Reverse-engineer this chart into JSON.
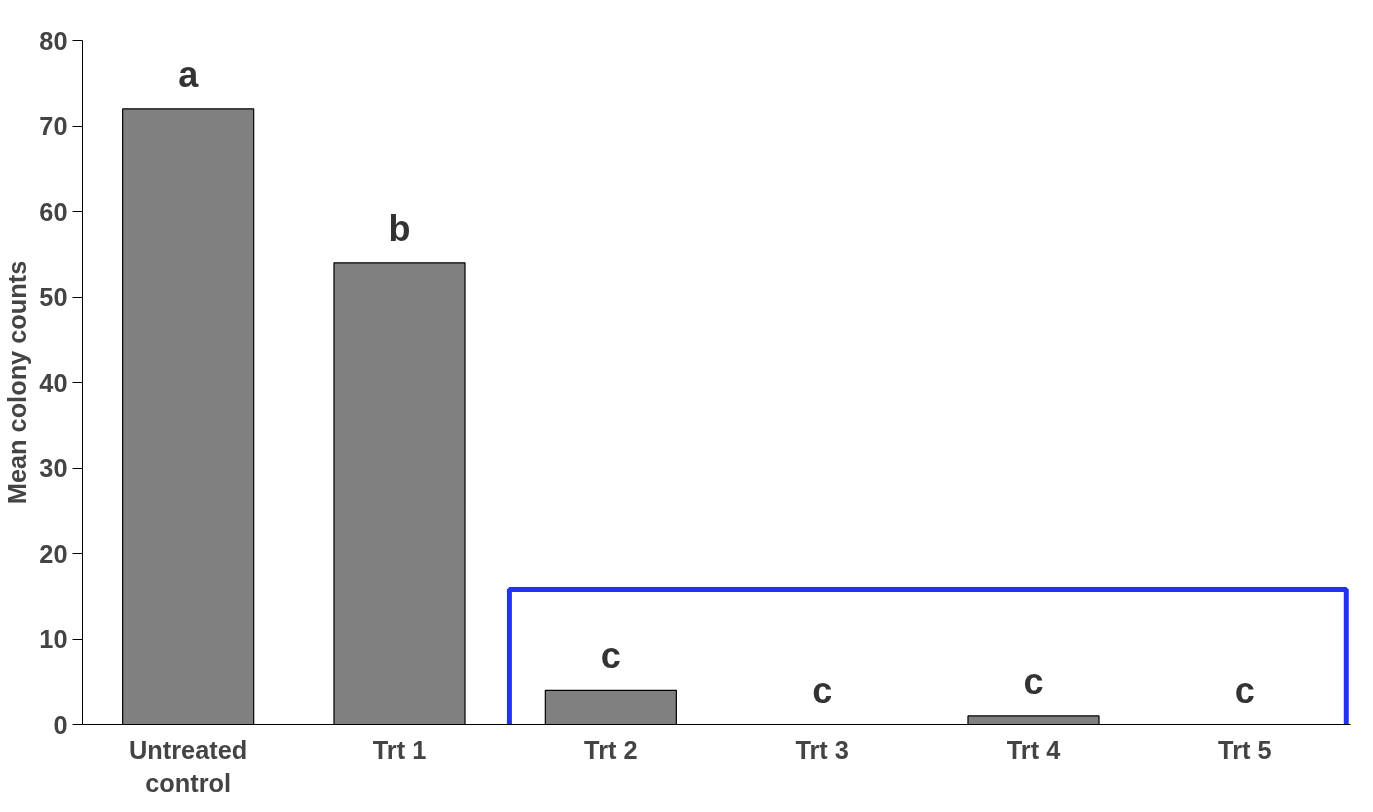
{
  "chart_data": {
    "type": "bar",
    "ylabel": "Mean colony counts",
    "categories": [
      "Untreated control",
      "Trt 1",
      "Trt 2",
      "Trt 3",
      "Trt 4",
      "Trt 5"
    ],
    "values": [
      72,
      54,
      4,
      0,
      1,
      0
    ],
    "color": "#808080",
    "ylim": [
      0,
      80
    ],
    "yticks": [
      0,
      10,
      20,
      30,
      40,
      50,
      60,
      70,
      80
    ],
    "grid": false,
    "annotations": [
      {
        "text": "a",
        "x": "Untreated control",
        "y": 72
      },
      {
        "text": "b",
        "x": "Trt 1",
        "y": 54
      },
      {
        "text": "c",
        "x": "Trt 2",
        "y": 4
      },
      {
        "text": "c",
        "x": "Trt 3",
        "y": 0
      },
      {
        "text": "c",
        "x": "Trt 4",
        "y": 1
      },
      {
        "text": "c",
        "x": "Trt 5",
        "y": 0
      }
    ]
  }
}
